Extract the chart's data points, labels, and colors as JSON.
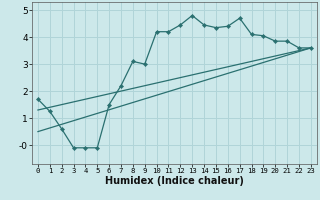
{
  "xlabel": "Humidex (Indice chaleur)",
  "background_color": "#cce8ea",
  "grid_color": "#b0d4d8",
  "line_color": "#2a7070",
  "xlim": [
    -0.5,
    23.5
  ],
  "ylim": [
    -0.7,
    5.3
  ],
  "xticks": [
    0,
    1,
    2,
    3,
    4,
    5,
    6,
    7,
    8,
    9,
    10,
    11,
    12,
    13,
    14,
    15,
    16,
    17,
    18,
    19,
    20,
    21,
    22,
    23
  ],
  "yticks": [
    0,
    1,
    2,
    3,
    4,
    5
  ],
  "ytick_labels": [
    "-0",
    "1",
    "2",
    "3",
    "4",
    "5"
  ],
  "line1_x": [
    0,
    1,
    2,
    3,
    4,
    5,
    6,
    7,
    8,
    9,
    10,
    11,
    12,
    13,
    14,
    15,
    16,
    17,
    18,
    19,
    20,
    21,
    22,
    23
  ],
  "line1_y": [
    1.7,
    1.25,
    0.6,
    -0.1,
    -0.1,
    -0.1,
    1.5,
    2.2,
    3.1,
    3.0,
    4.2,
    4.2,
    4.45,
    4.8,
    4.45,
    4.35,
    4.4,
    4.7,
    4.1,
    4.05,
    3.85,
    3.85,
    3.6,
    3.6
  ],
  "line2_x": [
    0,
    23
  ],
  "line2_y": [
    1.3,
    3.6
  ],
  "line3_x": [
    0,
    23
  ],
  "line3_y": [
    0.5,
    3.6
  ]
}
